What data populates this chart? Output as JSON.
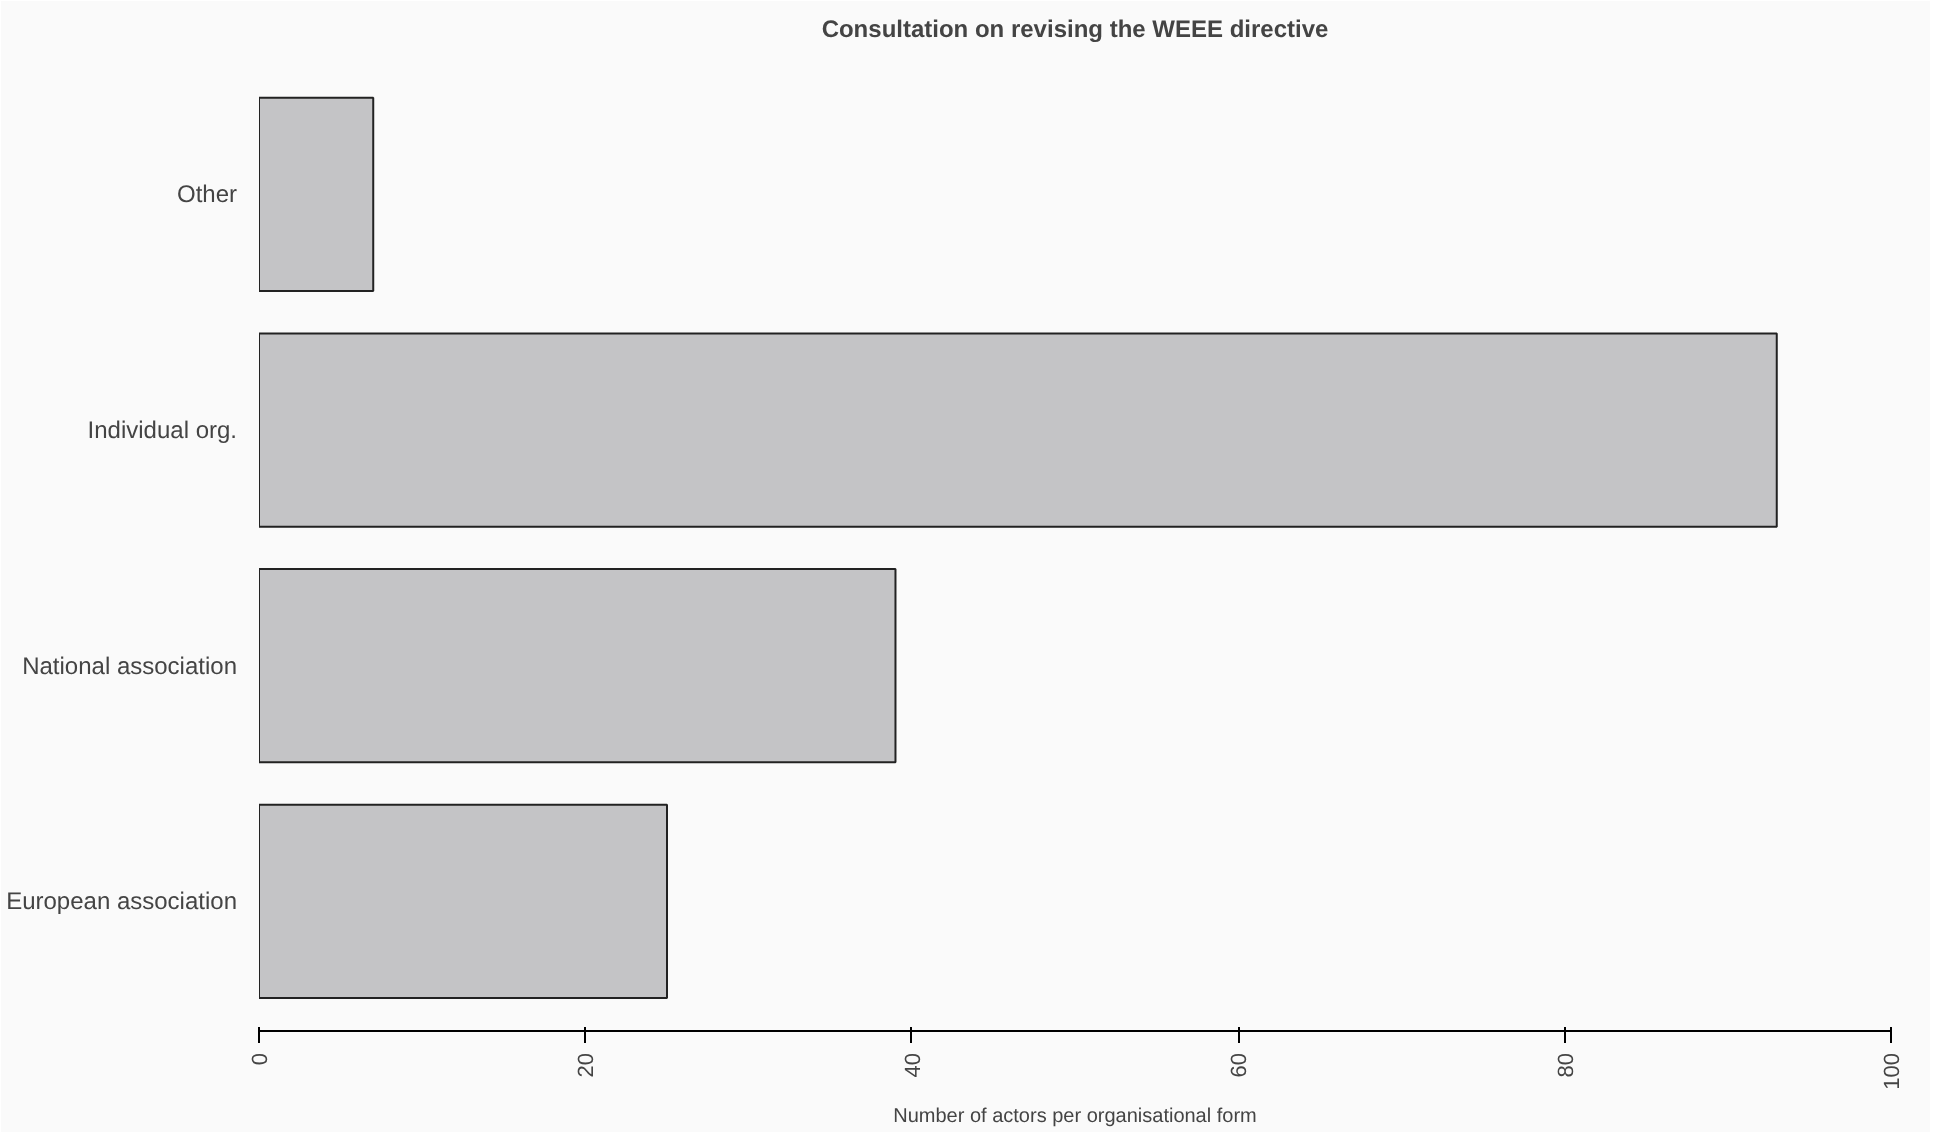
{
  "chart_data": {
    "type": "bar",
    "orientation": "horizontal",
    "title": "Consultation on revising the WEEE directive",
    "xlabel": "Number of actors per organisational form",
    "categories": [
      "Other",
      "Individual org.",
      "National association",
      "European association"
    ],
    "values": [
      7,
      93,
      39,
      25
    ],
    "color": "#c4c4c6",
    "xlim": [
      0,
      100
    ],
    "xticks": [
      0,
      20,
      40,
      60,
      80,
      100
    ],
    "grid": false
  }
}
